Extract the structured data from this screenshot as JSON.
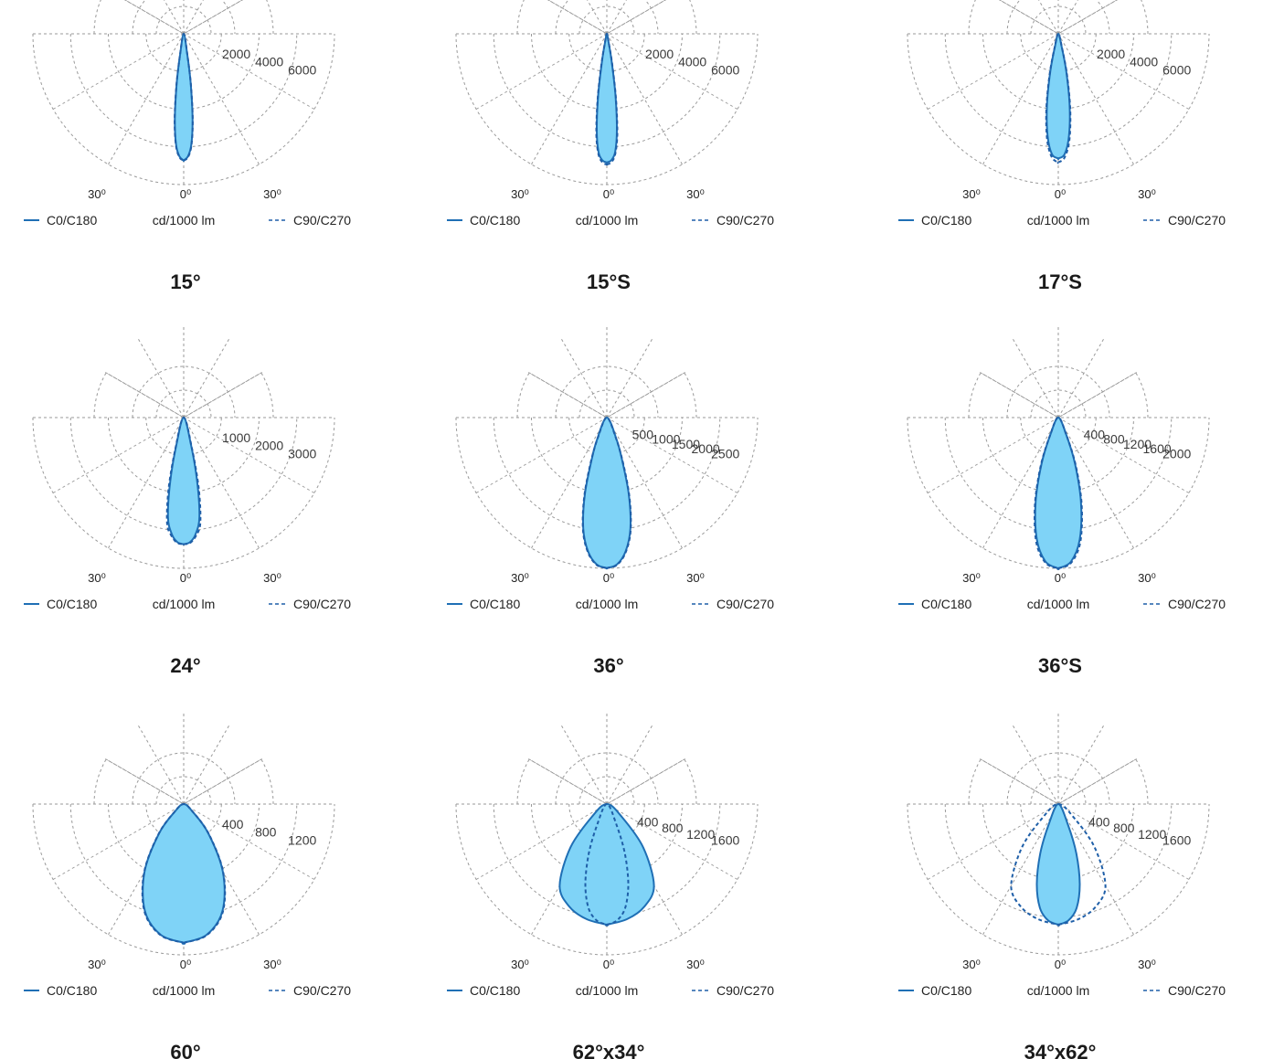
{
  "colors": {
    "fill": "#7fd3f7",
    "solid_line": "#1f6fb5",
    "dash_line": "#1f5fa8",
    "grid": "#9a9a9a"
  },
  "chart_data": [
    {
      "type": "polar",
      "title": "15°",
      "unit": "cd/1000 lm",
      "legend": {
        "solid": "C0/C180",
        "dashed": "C90/C270"
      },
      "rings": [
        "2000",
        "4000",
        "6000"
      ],
      "ring_values": [
        2000,
        4000,
        6000
      ],
      "rmax": 7500,
      "angle_labels": {
        "left": "30⁰",
        "center": "0⁰",
        "right": "30⁰"
      },
      "series": [
        {
          "name": "C0/C180",
          "style": "solid",
          "angles_deg": [
            0,
            2,
            4,
            6,
            8,
            10,
            12
          ],
          "values": [
            6300,
            6100,
            5500,
            4200,
            2500,
            1000,
            0
          ]
        },
        {
          "name": "C90/C270",
          "style": "dashed",
          "angles_deg": [
            0,
            2,
            4,
            6,
            8,
            10,
            12
          ],
          "values": [
            6300,
            6150,
            5550,
            4300,
            2600,
            1050,
            0
          ]
        }
      ]
    },
    {
      "type": "polar",
      "title": "15°S",
      "unit": "cd/1000 lm",
      "legend": {
        "solid": "C0/C180",
        "dashed": "C90/C270"
      },
      "rings": [
        "2000",
        "4000",
        "6000"
      ],
      "ring_values": [
        2000,
        4000,
        6000
      ],
      "rmax": 7500,
      "angle_labels": {
        "left": "30⁰",
        "center": "0⁰",
        "right": "30⁰"
      },
      "series": [
        {
          "name": "C0/C180",
          "style": "solid",
          "angles_deg": [
            0,
            2,
            4,
            6,
            8,
            10,
            12,
            14
          ],
          "values": [
            6400,
            6300,
            5900,
            4800,
            3100,
            1400,
            400,
            0
          ]
        },
        {
          "name": "C90/C270",
          "style": "dashed",
          "angles_deg": [
            0,
            2,
            4,
            6,
            8,
            10,
            12,
            14
          ],
          "values": [
            6500,
            6400,
            6000,
            5000,
            3300,
            1600,
            500,
            0
          ]
        }
      ]
    },
    {
      "type": "polar",
      "title": "17°S",
      "unit": "cd/1000 lm",
      "legend": {
        "solid": "C0/C180",
        "dashed": "C90/C270"
      },
      "rings": [
        "2000",
        "4000",
        "6000"
      ],
      "ring_values": [
        2000,
        4000,
        6000
      ],
      "rmax": 7500,
      "angle_labels": {
        "left": "30⁰",
        "center": "0⁰",
        "right": "30⁰"
      },
      "series": [
        {
          "name": "C0/C180",
          "style": "solid",
          "angles_deg": [
            0,
            3,
            6,
            9,
            12,
            15,
            18
          ],
          "values": [
            6200,
            6000,
            5100,
            3600,
            1900,
            600,
            0
          ]
        },
        {
          "name": "C90/C270",
          "style": "dashed",
          "angles_deg": [
            0,
            3,
            6,
            9,
            12,
            15,
            18
          ],
          "values": [
            6400,
            6150,
            5300,
            3800,
            2100,
            700,
            0
          ]
        }
      ]
    },
    {
      "type": "polar",
      "title": "24°",
      "unit": "cd/1000 lm",
      "legend": {
        "solid": "C0/C180",
        "dashed": "C90/C270"
      },
      "rings": [
        "1000",
        "2000",
        "3000"
      ],
      "ring_values": [
        1000,
        2000,
        3000
      ],
      "rmax": 3750,
      "angle_labels": {
        "left": "30⁰",
        "center": "0⁰",
        "right": "30⁰"
      },
      "series": [
        {
          "name": "C0/C180",
          "style": "solid",
          "angles_deg": [
            0,
            3,
            6,
            9,
            12,
            15,
            18
          ],
          "values": [
            3150,
            3100,
            2900,
            2500,
            1600,
            700,
            0
          ]
        },
        {
          "name": "C90/C270",
          "style": "dashed",
          "angles_deg": [
            0,
            3,
            6,
            9,
            12,
            15,
            18
          ],
          "values": [
            3150,
            3120,
            2950,
            2650,
            1800,
            800,
            0
          ]
        }
      ]
    },
    {
      "type": "polar",
      "title": "36°",
      "unit": "cd/1000 lm",
      "legend": {
        "solid": "C0/C180",
        "dashed": "C90/C270"
      },
      "rings": [
        "500",
        "1000",
        "1500",
        "2000",
        "2500"
      ],
      "ring_values": [
        500,
        1000,
        1500,
        2000,
        2500
      ],
      "rmax": 3125,
      "angle_labels": {
        "left": "30⁰",
        "center": "0⁰",
        "right": "30⁰"
      },
      "series": [
        {
          "name": "C0/C180",
          "style": "solid",
          "angles_deg": [
            0,
            4,
            8,
            12,
            16,
            20,
            24,
            28
          ],
          "values": [
            3120,
            3050,
            2800,
            2350,
            1650,
            900,
            500,
            0
          ]
        },
        {
          "name": "C90/C270",
          "style": "dashed",
          "angles_deg": [
            0,
            4,
            8,
            12,
            16,
            20,
            24,
            28
          ],
          "values": [
            3120,
            3060,
            2820,
            2380,
            1700,
            950,
            450,
            0
          ]
        }
      ]
    },
    {
      "type": "polar",
      "title": "36°S",
      "unit": "cd/1000 lm",
      "legend": {
        "solid": "C0/C180",
        "dashed": "C90/C270"
      },
      "rings": [
        "400",
        "800",
        "1200",
        "1600",
        "2000"
      ],
      "ring_values": [
        400,
        800,
        1200,
        1600,
        2000
      ],
      "rmax": 2500,
      "angle_labels": {
        "left": "30⁰",
        "center": "0⁰",
        "right": "30⁰"
      },
      "series": [
        {
          "name": "C0/C180",
          "style": "solid",
          "angles_deg": [
            0,
            5,
            10,
            15,
            20,
            25,
            30
          ],
          "values": [
            2500,
            2400,
            2050,
            1450,
            800,
            300,
            0
          ]
        },
        {
          "name": "C90/C270",
          "style": "dashed",
          "angles_deg": [
            0,
            5,
            10,
            15,
            20,
            25,
            30
          ],
          "values": [
            2500,
            2420,
            2100,
            1500,
            850,
            320,
            0
          ]
        }
      ]
    },
    {
      "type": "polar",
      "title": "60°",
      "unit": "cd/1000 lm",
      "legend": {
        "solid": "C0/C180",
        "dashed": "C90/C270"
      },
      "rings": [
        "400",
        "800",
        "1200"
      ],
      "ring_values": [
        400,
        800,
        1200
      ],
      "rmax": 1500,
      "angle_labels": {
        "left": "30⁰",
        "center": "0⁰",
        "right": "30⁰"
      },
      "series": [
        {
          "name": "C0/C180",
          "style": "solid",
          "angles_deg": [
            0,
            10,
            20,
            30,
            40,
            50,
            60
          ],
          "values": [
            1380,
            1320,
            1130,
            780,
            380,
            110,
            0
          ]
        },
        {
          "name": "C90/C270",
          "style": "dashed",
          "angles_deg": [
            0,
            10,
            20,
            30,
            40,
            50,
            60
          ],
          "values": [
            1380,
            1325,
            1140,
            790,
            390,
            115,
            0
          ]
        }
      ]
    },
    {
      "type": "polar",
      "title": "62°x34°",
      "unit": "cd/1000 lm",
      "legend": {
        "solid": "C0/C180",
        "dashed": "C90/C270"
      },
      "rings": [
        "400",
        "800",
        "1200",
        "1600"
      ],
      "ring_values": [
        400,
        800,
        1200,
        1600
      ],
      "rmax": 2000,
      "angle_labels": {
        "left": "30⁰",
        "center": "0⁰",
        "right": "30⁰"
      },
      "series": [
        {
          "name": "C0/C180",
          "style": "solid",
          "angles_deg": [
            0,
            10,
            20,
            30,
            40,
            50,
            60
          ],
          "values": [
            1600,
            1550,
            1450,
            1250,
            750,
            250,
            0
          ]
        },
        {
          "name": "C90/C270",
          "style": "dashed",
          "angles_deg": [
            0,
            5,
            10,
            15,
            20,
            25,
            30
          ],
          "values": [
            1600,
            1550,
            1400,
            1100,
            700,
            300,
            0
          ]
        }
      ]
    },
    {
      "type": "polar",
      "title": "34°x62°",
      "unit": "cd/1000 lm",
      "legend": {
        "solid": "C0/C180",
        "dashed": "C90/C270"
      },
      "rings": [
        "400",
        "800",
        "1200",
        "1600"
      ],
      "ring_values": [
        400,
        800,
        1200,
        1600
      ],
      "rmax": 2000,
      "angle_labels": {
        "left": "30⁰",
        "center": "0⁰",
        "right": "30⁰"
      },
      "series": [
        {
          "name": "C0/C180",
          "style": "solid",
          "angles_deg": [
            0,
            5,
            10,
            15,
            20,
            25,
            30
          ],
          "values": [
            1600,
            1550,
            1400,
            1100,
            700,
            300,
            0
          ]
        },
        {
          "name": "C90/C270",
          "style": "dashed",
          "angles_deg": [
            0,
            10,
            20,
            30,
            40,
            50,
            60
          ],
          "values": [
            1600,
            1550,
            1450,
            1250,
            750,
            250,
            0
          ]
        }
      ]
    }
  ]
}
